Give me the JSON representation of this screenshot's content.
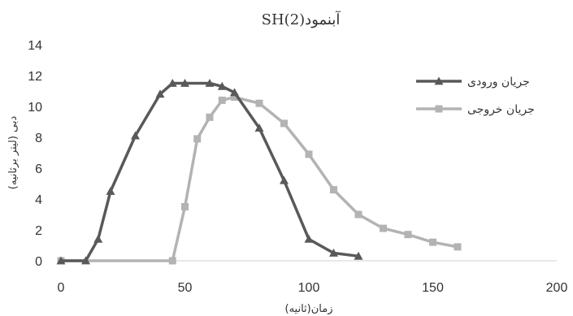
{
  "chart_data": {
    "type": "line",
    "title": "آبنمود(SH(2",
    "xlabel": "زمان(ثانیه)",
    "ylabel": "دبی (لیتر برثانیه)",
    "xlim": [
      0,
      200
    ],
    "ylim": [
      0,
      14
    ],
    "xticks": [
      0,
      50,
      100,
      150,
      200
    ],
    "yticks": [
      0,
      2,
      4,
      6,
      8,
      10,
      12,
      14
    ],
    "grid": false,
    "legend_position": "right",
    "series": [
      {
        "name": "جریان ورودی",
        "color": "#595959",
        "marker": "triangle",
        "x": [
          0,
          10,
          15,
          20,
          30,
          40,
          45,
          50,
          60,
          65,
          70,
          80,
          90,
          100,
          110,
          120
        ],
        "y": [
          0,
          0,
          1.4,
          4.5,
          8.1,
          10.8,
          11.5,
          11.5,
          11.5,
          11.3,
          10.9,
          8.6,
          5.2,
          1.4,
          0.5,
          0.3
        ]
      },
      {
        "name": "جریان خروجی",
        "color": "#b3b3b3",
        "marker": "square",
        "x": [
          0,
          45,
          50,
          55,
          60,
          65,
          70,
          80,
          90,
          100,
          110,
          120,
          130,
          140,
          150,
          160
        ],
        "y": [
          0,
          0,
          3.5,
          7.9,
          9.3,
          10.4,
          10.6,
          10.2,
          8.9,
          6.9,
          4.6,
          3.0,
          2.1,
          1.7,
          1.2,
          0.9
        ]
      }
    ]
  }
}
